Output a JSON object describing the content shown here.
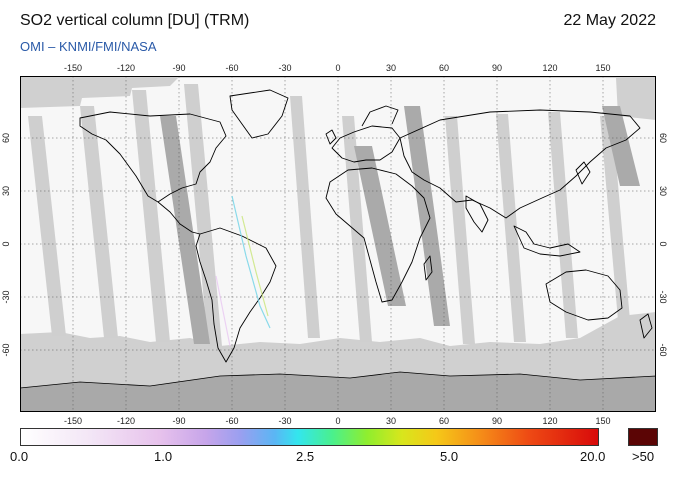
{
  "header": {
    "title": "SO2 vertical column [DU] (TRM)",
    "subtitle": "OMI  –  KNMI/FMI/NASA",
    "date": "22 May 2022"
  },
  "map": {
    "projection": "equirectangular",
    "lon_ticks": [
      "-150",
      "-120",
      "-90",
      "-60",
      "-30",
      "0",
      "30",
      "60",
      "90",
      "120",
      "150"
    ],
    "lat_ticks": [
      "60",
      "30",
      "0",
      "-30",
      "-60"
    ],
    "colors": {
      "no_data": "#d0d0d0",
      "night": "#a9a9a9",
      "coverage": "#f7f7f7",
      "coastline": "#000000"
    }
  },
  "colorbar": {
    "labels": [
      "0.0",
      "1.0",
      "2.5",
      "5.0",
      "20.0"
    ],
    "overflow_label": ">50",
    "overflow_color": "#5b0505"
  }
}
